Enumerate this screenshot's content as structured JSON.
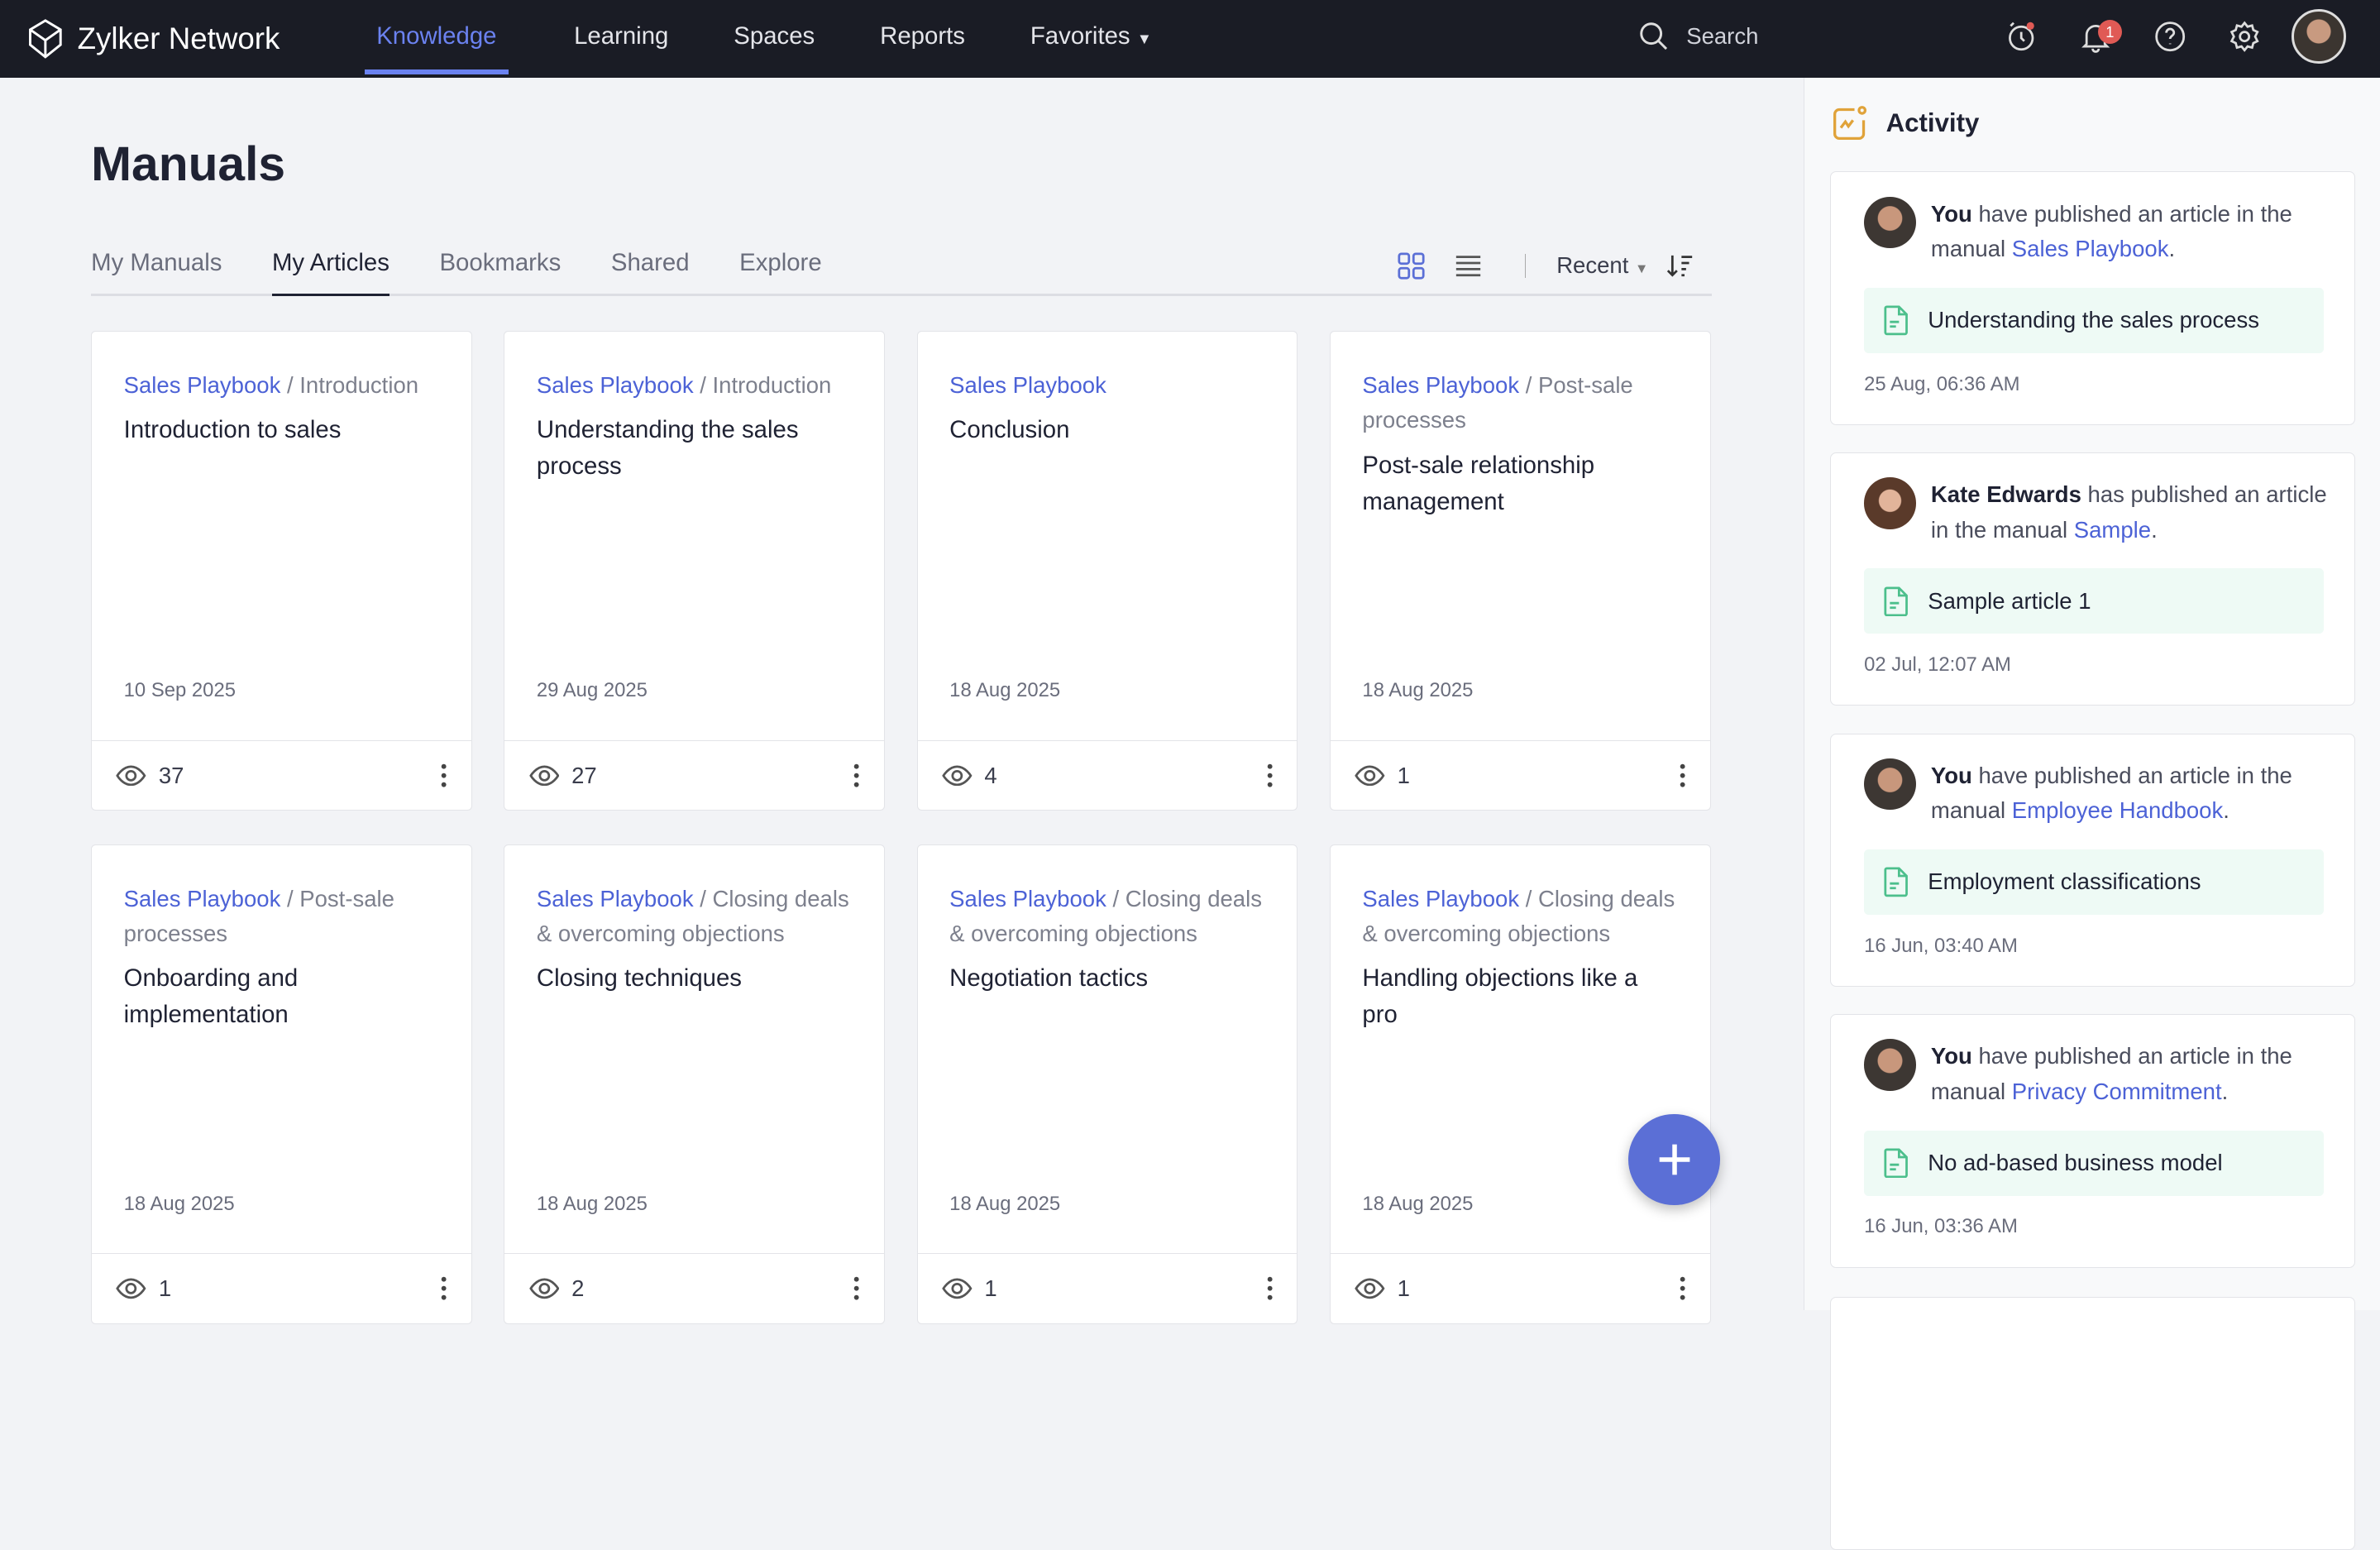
{
  "app": {
    "name": "Zylker Network"
  },
  "nav": {
    "items": [
      {
        "label": "Knowledge",
        "active": true
      },
      {
        "label": "Learning"
      },
      {
        "label": "Spaces"
      },
      {
        "label": "Reports"
      },
      {
        "label": "Favorites"
      }
    ],
    "search_placeholder": "Search",
    "notification_count": "1",
    "accent": "#6b82f0"
  },
  "page": {
    "title": "Manuals",
    "tabs": [
      "My Manuals",
      "My Articles",
      "Bookmarks",
      "Shared",
      "Explore"
    ],
    "active_tab": "My Articles",
    "sort": "Recent"
  },
  "cards": [
    {
      "manual": "Sales Playbook",
      "section": "Introduction",
      "title": "Introduction to sales",
      "date": "10 Sep 2025",
      "views": "37"
    },
    {
      "manual": "Sales Playbook",
      "section": "Introduction",
      "title": "Understanding the sales process",
      "date": "29 Aug 2025",
      "views": "27"
    },
    {
      "manual": "Sales Playbook",
      "section": "",
      "title": "Conclusion",
      "date": "18 Aug 2025",
      "views": "4"
    },
    {
      "manual": "Sales Playbook",
      "section": "Post-sale processes",
      "title": "Post-sale relationship management",
      "date": "18 Aug 2025",
      "views": "1"
    },
    {
      "manual": "Sales Playbook",
      "section": "Post-sale processes",
      "title": "Onboarding and implementation",
      "date": "18 Aug 2025",
      "views": "1"
    },
    {
      "manual": "Sales Playbook",
      "section": "Closing deals & overcoming objections",
      "title": "Closing techniques",
      "date": "18 Aug 2025",
      "views": "2"
    },
    {
      "manual": "Sales Playbook",
      "section": "Closing deals & overcoming objections",
      "title": "Negotiation tactics",
      "date": "18 Aug 2025",
      "views": "1"
    },
    {
      "manual": "Sales Playbook",
      "section": "Closing deals & overcoming objections",
      "title": "Handling objections like a pro",
      "date": "18 Aug 2025",
      "views": "1"
    }
  ],
  "activity": {
    "title": "Activity",
    "items": [
      {
        "who": "You",
        "text": " have published an article in the manual ",
        "manual": "Sales Playbook",
        "article": "Understanding the sales process",
        "time": "25 Aug, 06:36 AM"
      },
      {
        "who": "Kate Edwards",
        "text": " has published an article in the manual ",
        "manual": "Sample",
        "article": "Sample article 1",
        "time": "02 Jul, 12:07 AM"
      },
      {
        "who": "You",
        "text": " have published an article in the manual ",
        "manual": "Employee Handbook",
        "article": "Employment classifications",
        "time": "16 Jun, 03:40 AM"
      },
      {
        "who": "You",
        "text": " have published an article in the manual ",
        "manual": "Privacy Commitment",
        "article": "No ad-based business model",
        "time": "16 Jun, 03:36 AM"
      }
    ]
  }
}
